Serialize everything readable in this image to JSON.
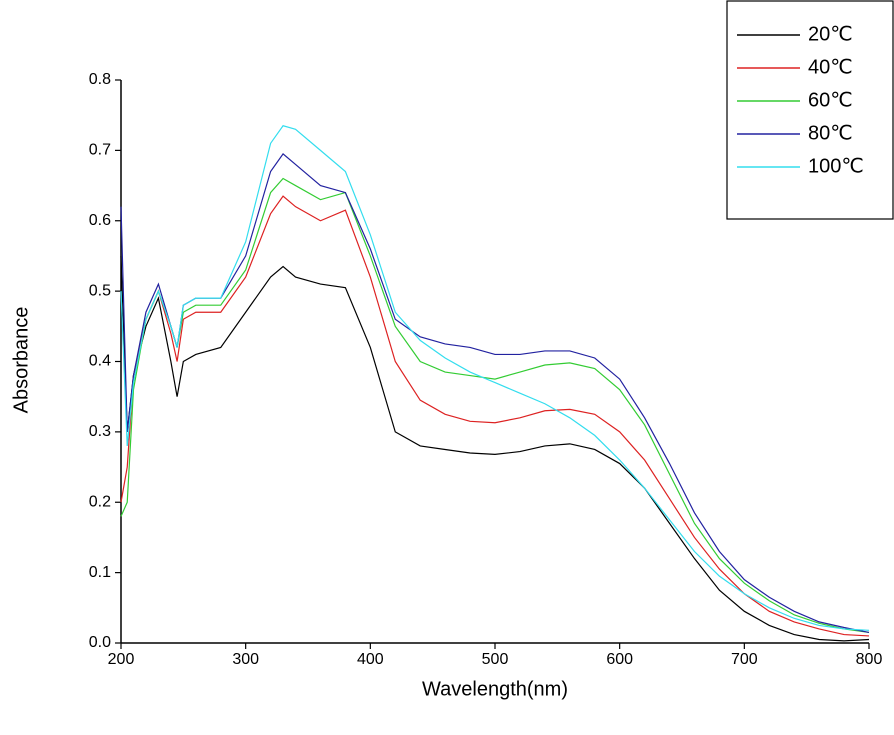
{
  "chart_data": {
    "type": "line",
    "x_label": "Wavelength(nm)",
    "y_label": "Absorbance",
    "x": [
      200,
      205,
      210,
      220,
      230,
      240,
      245,
      250,
      260,
      280,
      300,
      320,
      330,
      340,
      360,
      380,
      400,
      420,
      440,
      460,
      480,
      500,
      520,
      540,
      560,
      580,
      600,
      620,
      640,
      660,
      680,
      700,
      720,
      740,
      760,
      780,
      800
    ],
    "series": [
      {
        "name": "20℃",
        "color": "#000000",
        "values": [
          0.55,
          0.3,
          0.38,
          0.45,
          0.49,
          0.4,
          0.35,
          0.4,
          0.41,
          0.42,
          0.47,
          0.52,
          0.535,
          0.52,
          0.51,
          0.505,
          0.42,
          0.3,
          0.28,
          0.275,
          0.27,
          0.268,
          0.272,
          0.28,
          0.283,
          0.275,
          0.255,
          0.22,
          0.17,
          0.12,
          0.075,
          0.045,
          0.025,
          0.012,
          0.005,
          0.003,
          0.005
        ]
      },
      {
        "name": "40℃",
        "color": "#dd2222",
        "values": [
          0.2,
          0.25,
          0.38,
          0.46,
          0.5,
          0.44,
          0.4,
          0.46,
          0.47,
          0.47,
          0.52,
          0.61,
          0.635,
          0.62,
          0.6,
          0.615,
          0.52,
          0.4,
          0.345,
          0.325,
          0.315,
          0.313,
          0.32,
          0.33,
          0.332,
          0.325,
          0.3,
          0.26,
          0.205,
          0.15,
          0.105,
          0.07,
          0.045,
          0.03,
          0.02,
          0.012,
          0.01
        ]
      },
      {
        "name": "60℃",
        "color": "#33cc33",
        "values": [
          0.18,
          0.2,
          0.36,
          0.46,
          0.5,
          0.45,
          0.42,
          0.47,
          0.48,
          0.48,
          0.53,
          0.64,
          0.66,
          0.65,
          0.63,
          0.64,
          0.55,
          0.45,
          0.4,
          0.385,
          0.38,
          0.375,
          0.385,
          0.395,
          0.398,
          0.39,
          0.36,
          0.31,
          0.24,
          0.17,
          0.12,
          0.085,
          0.06,
          0.04,
          0.028,
          0.02,
          0.015
        ]
      },
      {
        "name": "80℃",
        "color": "#2222a0",
        "values": [
          0.62,
          0.3,
          0.38,
          0.47,
          0.51,
          0.45,
          0.42,
          0.48,
          0.49,
          0.49,
          0.55,
          0.67,
          0.695,
          0.68,
          0.65,
          0.64,
          0.56,
          0.46,
          0.435,
          0.425,
          0.42,
          0.41,
          0.41,
          0.415,
          0.415,
          0.405,
          0.375,
          0.32,
          0.255,
          0.185,
          0.13,
          0.09,
          0.065,
          0.045,
          0.03,
          0.022,
          0.015
        ]
      },
      {
        "name": "100℃",
        "color": "#33ddee",
        "values": [
          0.5,
          0.28,
          0.37,
          0.46,
          0.5,
          0.45,
          0.42,
          0.48,
          0.49,
          0.49,
          0.57,
          0.71,
          0.735,
          0.73,
          0.7,
          0.67,
          0.58,
          0.47,
          0.43,
          0.405,
          0.385,
          0.37,
          0.355,
          0.34,
          0.32,
          0.295,
          0.26,
          0.22,
          0.175,
          0.13,
          0.095,
          0.07,
          0.05,
          0.035,
          0.025,
          0.02,
          0.018
        ]
      }
    ],
    "xlim": [
      200,
      800
    ],
    "ylim": [
      0,
      0.8
    ],
    "xticks": [
      200,
      300,
      400,
      500,
      600,
      700,
      800
    ],
    "yticks": [
      {
        "value": 0,
        "label": "0.0"
      },
      0.1,
      0.2,
      0.3,
      0.4,
      0.5,
      0.6,
      0.7,
      0.8
    ],
    "legend": "upper right"
  }
}
